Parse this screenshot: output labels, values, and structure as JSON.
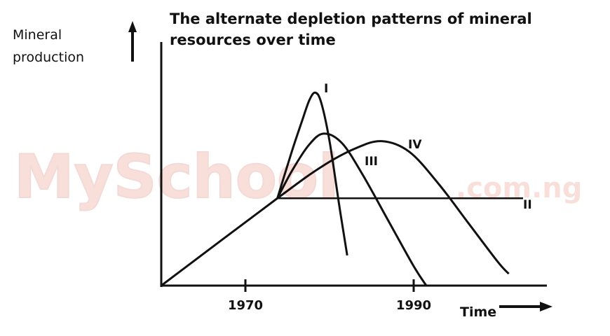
{
  "chart_data": {
    "type": "line",
    "title_lines": [
      "The alternate depletion patterns of mineral",
      "resources over time"
    ],
    "ylabel_lines": [
      "Mineral",
      "production"
    ],
    "xlabel": "Time",
    "xticks": [
      {
        "value": 1970,
        "label": "1970"
      },
      {
        "value": 1990,
        "label": "1990"
      }
    ],
    "xlim": [
      1960,
      2006
    ],
    "ylim": [
      0,
      100
    ],
    "series": [
      {
        "name": "I",
        "points": [
          [
            1973.8,
            40.5
          ],
          [
            1975.5,
            62
          ],
          [
            1976.7,
            76
          ],
          [
            1977.6,
            86
          ],
          [
            1978.3,
            89.5
          ],
          [
            1979.0,
            85
          ],
          [
            1980.0,
            67
          ],
          [
            1981.2,
            36
          ],
          [
            1982.1,
            14
          ]
        ]
      },
      {
        "name": "III",
        "points": [
          [
            1973.8,
            40.5
          ],
          [
            1975.5,
            53
          ],
          [
            1977.5,
            65
          ],
          [
            1979.3,
            70.5
          ],
          [
            1981.5,
            66
          ],
          [
            1984.0,
            51
          ],
          [
            1987.0,
            30
          ],
          [
            1990.0,
            9
          ],
          [
            1991.5,
            0
          ]
        ]
      },
      {
        "name": "IV",
        "points": [
          [
            1960.0,
            0
          ],
          [
            1973.8,
            40.5
          ],
          [
            1979.0,
            55
          ],
          [
            1983.0,
            63.5
          ],
          [
            1986.2,
            67
          ],
          [
            1989.5,
            62
          ],
          [
            1993.0,
            47
          ],
          [
            1996.5,
            29
          ],
          [
            2000.0,
            11
          ],
          [
            2001.3,
            5.5
          ]
        ]
      },
      {
        "name": "II",
        "points": [
          [
            1973.8,
            40.5
          ],
          [
            2003.0,
            40.5
          ]
        ]
      }
    ]
  },
  "watermark": {
    "main": "MySchool",
    "domain": ".com.ng"
  }
}
